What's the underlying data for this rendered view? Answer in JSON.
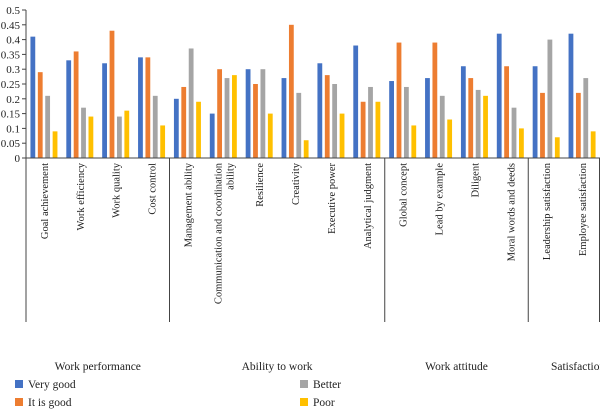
{
  "chart_data": {
    "type": "bar",
    "title": "",
    "xlabel": "",
    "ylabel": "",
    "ylim": [
      0,
      0.5
    ],
    "yticks": [
      0,
      0.05,
      0.1,
      0.15,
      0.2,
      0.25,
      0.3,
      0.35,
      0.4,
      0.45,
      0.5
    ],
    "ytick_labels": [
      "0",
      "0.05",
      "0.1",
      "0.15",
      "0.2",
      "0.25",
      "0.3",
      "0.35",
      "0.4",
      "0.45",
      "0.5"
    ],
    "categories": [
      "Goal achievement",
      "Work efficiency",
      "Work quality",
      "Cost control",
      "Management ability",
      "Communication and coordination ability",
      "Resilience",
      "Creativity",
      "Executive power",
      "Analytical judgment",
      "Global concept",
      "Lead by example",
      "Diligent",
      "Moral words and deeds",
      "Leadership satisfaction",
      "Employee satisfaction"
    ],
    "groups": [
      {
        "name": "Work performance",
        "count": 4
      },
      {
        "name": "Ability to work",
        "count": 6
      },
      {
        "name": "Work attitude",
        "count": 4
      },
      {
        "name": "Satisfaction",
        "count": 2
      }
    ],
    "series": [
      {
        "name": "Very good",
        "color": "#4472c4",
        "values": [
          0.41,
          0.33,
          0.32,
          0.34,
          0.2,
          0.15,
          0.3,
          0.27,
          0.32,
          0.38,
          0.26,
          0.27,
          0.31,
          0.42,
          0.31,
          0.42
        ]
      },
      {
        "name": "It is good",
        "color": "#ed7d31",
        "values": [
          0.29,
          0.36,
          0.43,
          0.34,
          0.24,
          0.3,
          0.25,
          0.45,
          0.28,
          0.19,
          0.39,
          0.39,
          0.27,
          0.31,
          0.22,
          0.22
        ]
      },
      {
        "name": "Better",
        "color": "#a5a5a5",
        "values": [
          0.21,
          0.17,
          0.14,
          0.21,
          0.37,
          0.27,
          0.3,
          0.22,
          0.25,
          0.24,
          0.24,
          0.21,
          0.23,
          0.17,
          0.4,
          0.27
        ]
      },
      {
        "name": "Poor",
        "color": "#ffc000",
        "values": [
          0.09,
          0.14,
          0.16,
          0.11,
          0.19,
          0.28,
          0.15,
          0.06,
          0.15,
          0.19,
          0.11,
          0.13,
          0.21,
          0.1,
          0.07,
          0.09
        ]
      }
    ],
    "legend_position": "bottom",
    "grid": false
  }
}
